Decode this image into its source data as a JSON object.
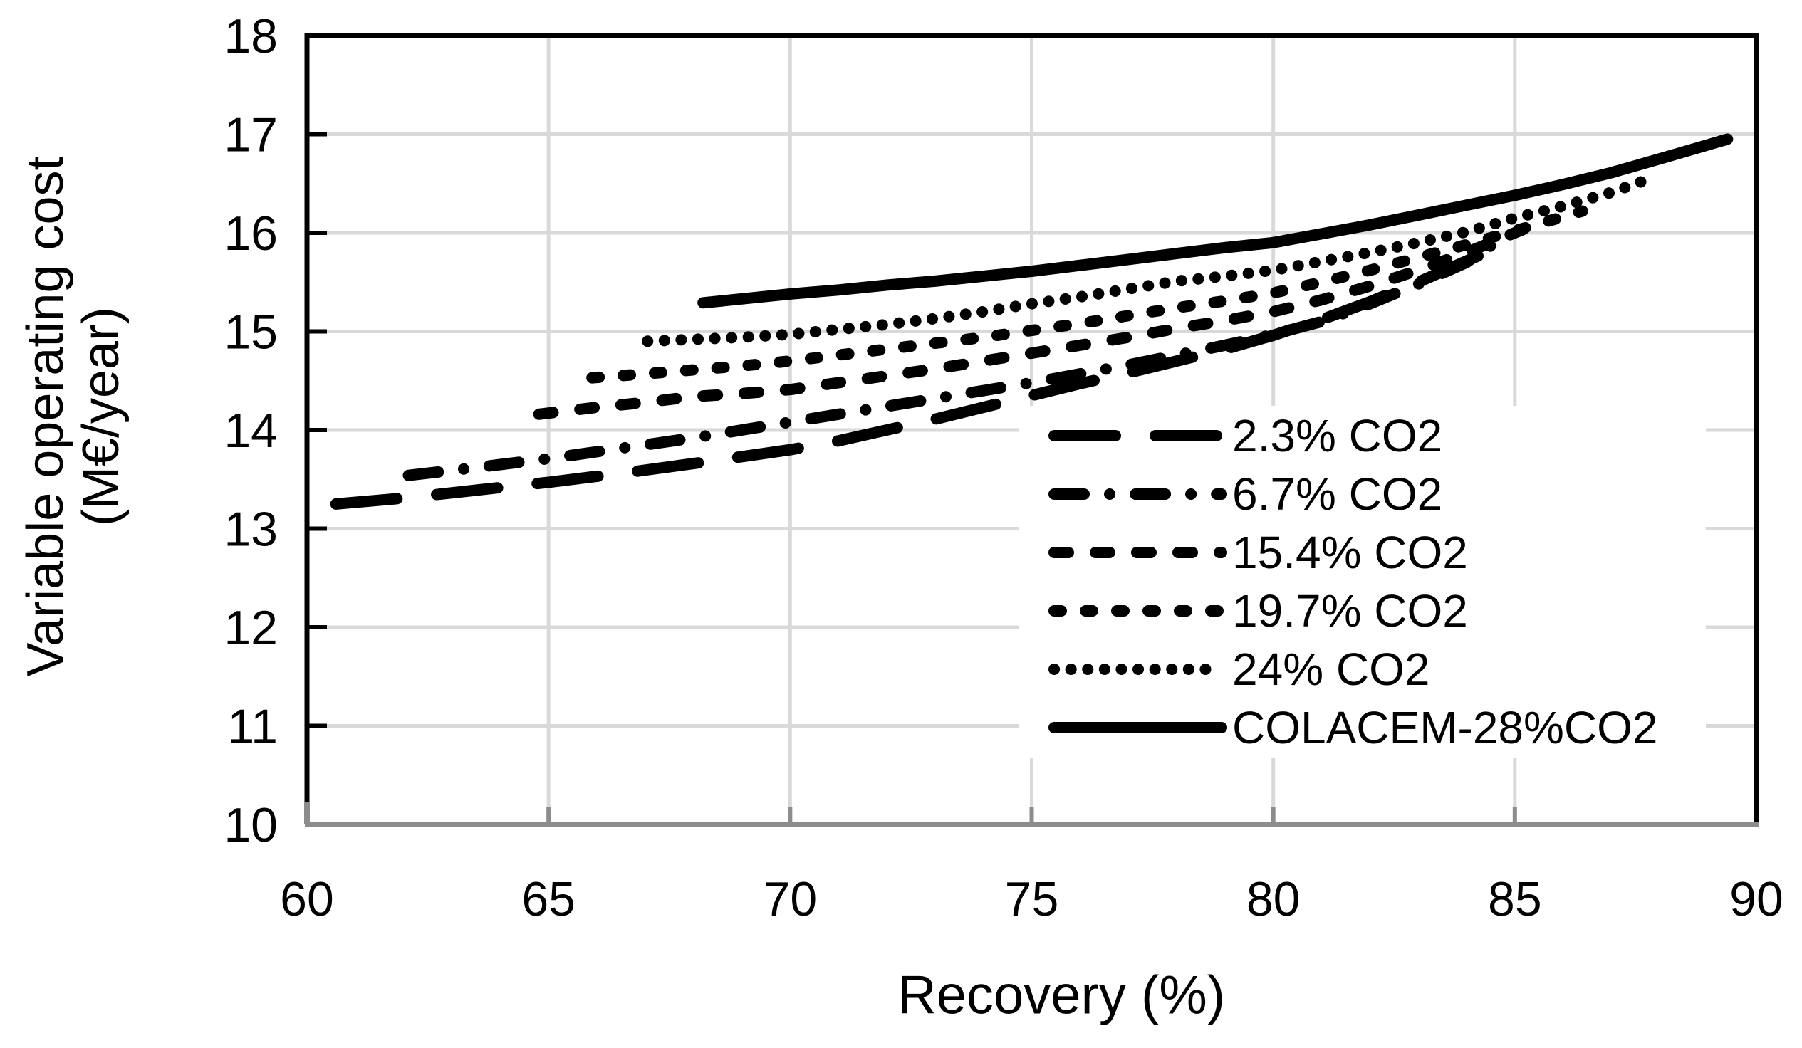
{
  "chart_data": {
    "type": "line",
    "title": "",
    "xlabel": "Recovery (%)",
    "ylabel": "Variable operating cost (M€/year)",
    "ylabel_lines": [
      "Variable operating cost",
      "(M€/year)"
    ],
    "xlim": [
      60,
      90
    ],
    "ylim": [
      10,
      18
    ],
    "xticks": [
      60,
      65,
      70,
      75,
      80,
      85,
      90
    ],
    "yticks": [
      10,
      11,
      12,
      13,
      14,
      15,
      16,
      17,
      18
    ],
    "grid": true,
    "grid_color": "#D9D9D9",
    "line_color": "#000000",
    "bottom_axis_color": "#8C8C8C",
    "legend_position": "inside lower right",
    "series": [
      {
        "name": "2.3% CO2",
        "dash": "long-dash",
        "points": [
          [
            60.6,
            13.25
          ],
          [
            62,
            13.31
          ],
          [
            63.5,
            13.39
          ],
          [
            65,
            13.47
          ],
          [
            66.5,
            13.56
          ],
          [
            68,
            13.66
          ],
          [
            69,
            13.73
          ],
          [
            70,
            13.8
          ],
          [
            71,
            13.89
          ],
          [
            72,
            14.0
          ],
          [
            73,
            14.11
          ],
          [
            74,
            14.23
          ],
          [
            75,
            14.35
          ],
          [
            76,
            14.47
          ],
          [
            77,
            14.58
          ],
          [
            78,
            14.7
          ],
          [
            79,
            14.82
          ],
          [
            80,
            14.96
          ],
          [
            81,
            15.12
          ],
          [
            82,
            15.3
          ],
          [
            83,
            15.5
          ],
          [
            84.4,
            15.8
          ]
        ]
      },
      {
        "name": "6.7% CO2",
        "dash": "dash-dot",
        "points": [
          [
            62.1,
            13.54
          ],
          [
            63,
            13.59
          ],
          [
            64,
            13.65
          ],
          [
            65,
            13.71
          ],
          [
            66,
            13.78
          ],
          [
            67,
            13.85
          ],
          [
            68,
            13.92
          ],
          [
            69,
            14.0
          ],
          [
            70,
            14.08
          ],
          [
            71,
            14.16
          ],
          [
            72,
            14.24
          ],
          [
            73,
            14.32
          ],
          [
            74,
            14.4
          ],
          [
            75,
            14.48
          ],
          [
            76,
            14.57
          ],
          [
            77,
            14.66
          ],
          [
            78,
            14.76
          ],
          [
            79,
            14.86
          ],
          [
            80,
            14.97
          ],
          [
            81,
            15.1
          ],
          [
            82,
            15.28
          ],
          [
            83,
            15.48
          ],
          [
            84,
            15.7
          ],
          [
            84.6,
            15.9
          ]
        ]
      },
      {
        "name": "15.4% CO2",
        "dash": "medium-dash",
        "points": [
          [
            64.8,
            14.16
          ],
          [
            66,
            14.23
          ],
          [
            67,
            14.28
          ],
          [
            68,
            14.34
          ],
          [
            69,
            14.37
          ],
          [
            70,
            14.41
          ],
          [
            71,
            14.48
          ],
          [
            72,
            14.55
          ],
          [
            73,
            14.62
          ],
          [
            74,
            14.7
          ],
          [
            75,
            14.78
          ],
          [
            76,
            14.86
          ],
          [
            77,
            14.94
          ],
          [
            78,
            15.03
          ],
          [
            79,
            15.11
          ],
          [
            80,
            15.2
          ],
          [
            81,
            15.32
          ],
          [
            82,
            15.46
          ],
          [
            83,
            15.62
          ],
          [
            84,
            15.8
          ],
          [
            85.4,
            16.08
          ]
        ]
      },
      {
        "name": "19.7% CO2",
        "dash": "short-dash",
        "points": [
          [
            65.9,
            14.53
          ],
          [
            67,
            14.57
          ],
          [
            68,
            14.61
          ],
          [
            69,
            14.65
          ],
          [
            70,
            14.7
          ],
          [
            71,
            14.76
          ],
          [
            72,
            14.82
          ],
          [
            73,
            14.88
          ],
          [
            74,
            14.94
          ],
          [
            75,
            15.01
          ],
          [
            76,
            15.08
          ],
          [
            77,
            15.16
          ],
          [
            78,
            15.24
          ],
          [
            79,
            15.31
          ],
          [
            80,
            15.39
          ],
          [
            81,
            15.5
          ],
          [
            82,
            15.62
          ],
          [
            83,
            15.75
          ],
          [
            84,
            15.88
          ],
          [
            85,
            16.02
          ],
          [
            86.4,
            16.22
          ]
        ]
      },
      {
        "name": "24% CO2",
        "dash": "dotted",
        "points": [
          [
            67.05,
            14.9
          ],
          [
            68,
            14.92
          ],
          [
            69,
            14.94
          ],
          [
            70,
            14.97
          ],
          [
            71,
            15.02
          ],
          [
            72,
            15.07
          ],
          [
            73,
            15.13
          ],
          [
            74,
            15.2
          ],
          [
            75,
            15.28
          ],
          [
            76,
            15.35
          ],
          [
            77,
            15.43
          ],
          [
            78,
            15.51
          ],
          [
            79,
            15.56
          ],
          [
            80,
            15.62
          ],
          [
            81,
            15.71
          ],
          [
            82,
            15.8
          ],
          [
            83,
            15.9
          ],
          [
            84,
            16.01
          ],
          [
            85,
            16.15
          ],
          [
            86,
            16.27
          ],
          [
            87,
            16.41
          ],
          [
            87.8,
            16.55
          ]
        ]
      },
      {
        "name": "COLACEM-28%CO2",
        "dash": "solid",
        "points": [
          [
            68.2,
            15.29
          ],
          [
            69,
            15.33
          ],
          [
            70,
            15.38
          ],
          [
            71,
            15.42
          ],
          [
            72,
            15.47
          ],
          [
            73,
            15.51
          ],
          [
            74,
            15.56
          ],
          [
            75,
            15.61
          ],
          [
            76,
            15.67
          ],
          [
            77,
            15.73
          ],
          [
            78,
            15.79
          ],
          [
            79,
            15.85
          ],
          [
            80,
            15.9
          ],
          [
            81,
            15.99
          ],
          [
            82,
            16.08
          ],
          [
            83,
            16.18
          ],
          [
            84,
            16.28
          ],
          [
            85,
            16.38
          ],
          [
            86,
            16.49
          ],
          [
            87,
            16.61
          ],
          [
            88,
            16.75
          ],
          [
            88.7,
            16.85
          ],
          [
            89.4,
            16.95
          ]
        ]
      }
    ]
  }
}
